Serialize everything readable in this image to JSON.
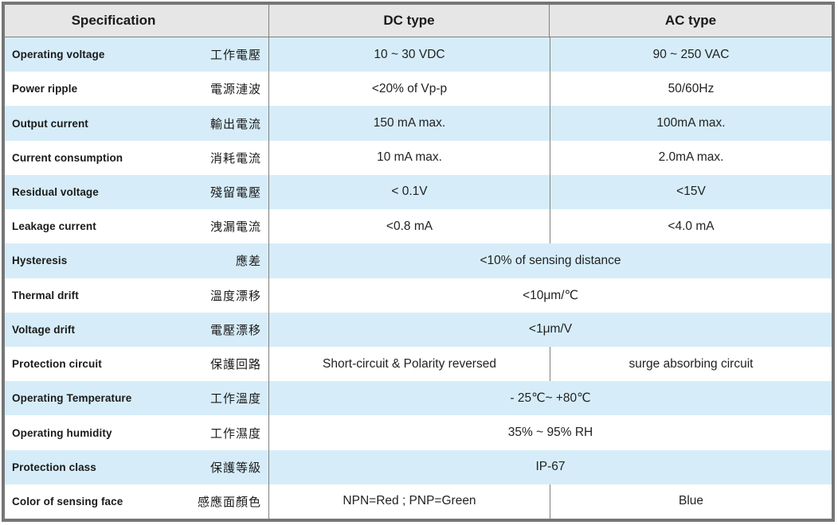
{
  "colors": {
    "header_bg": "#e6e6e6",
    "row_stripe_blue": "#d6edf9",
    "grid_line": "#808080",
    "outer_border": "#767676",
    "text": "#1a1a1a"
  },
  "table": {
    "header": {
      "spec": "Specification",
      "dc": "DC type",
      "ac": "AC type"
    },
    "rows": [
      {
        "en": "Operating voltage",
        "zh": "工作電壓",
        "merged": false,
        "dc": "10 ~ 30 VDC",
        "ac": "90 ~ 250 VAC"
      },
      {
        "en": "Power ripple",
        "zh": "電源漣波",
        "merged": false,
        "dc": "<20% of Vp-p",
        "ac": "50/60Hz"
      },
      {
        "en": "Output current",
        "zh": "輸出電流",
        "merged": false,
        "dc": "150 mA max.",
        "ac": "100mA max."
      },
      {
        "en": "Current consumption",
        "zh": "消耗電流",
        "merged": false,
        "dc": "10 mA max.",
        "ac": "2.0mA max."
      },
      {
        "en": "Residual voltage",
        "zh": "殘留電壓",
        "merged": false,
        "dc": "< 0.1V",
        "ac": "<15V"
      },
      {
        "en": "Leakage current",
        "zh": "洩漏電流",
        "merged": false,
        "dc": "<0.8 mA",
        "ac": "<4.0 mA"
      },
      {
        "en": "Hysteresis",
        "zh": "應差",
        "merged": true,
        "value": "<10% of sensing distance"
      },
      {
        "en": "Thermal drift",
        "zh": "溫度漂移",
        "merged": true,
        "value": "<10μm/℃"
      },
      {
        "en": "Voltage drift",
        "zh": "電壓漂移",
        "merged": true,
        "value": "<1μm/V"
      },
      {
        "en": "Protection circuit",
        "zh": "保護回路",
        "merged": false,
        "dc": "Short-circuit & Polarity reversed",
        "ac": "surge absorbing circuit"
      },
      {
        "en": "Operating Temperature",
        "zh": "工作溫度",
        "merged": true,
        "value": "- 25℃~ +80℃"
      },
      {
        "en": "Operating humidity",
        "zh": "工作濕度",
        "merged": true,
        "value": "35% ~ 95% RH"
      },
      {
        "en": "Protection class",
        "zh": "保護等級",
        "merged": true,
        "value": "IP-67"
      },
      {
        "en": "Color of sensing face",
        "zh": "感應面顏色",
        "merged": false,
        "dc": "NPN=Red ; PNP=Green",
        "ac": "Blue"
      }
    ]
  }
}
